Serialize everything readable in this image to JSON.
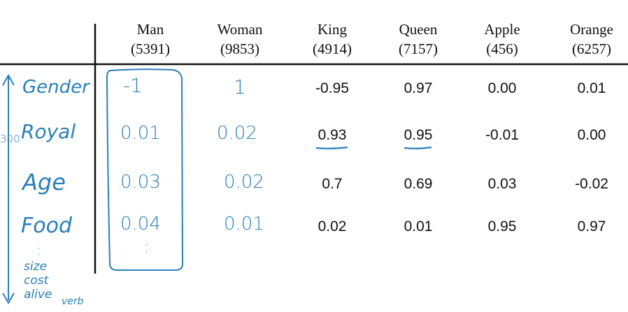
{
  "columns": [
    {
      "word": "Man",
      "index": "(5391)"
    },
    {
      "word": "Woman",
      "index": "(9853)"
    },
    {
      "word": "King",
      "index": "(4914)"
    },
    {
      "word": "Queen",
      "index": "(7157)"
    },
    {
      "word": "Apple",
      "index": "(456)"
    },
    {
      "word": "Orange",
      "index": "(6257)"
    }
  ],
  "rows": [
    {
      "feature": "Gender",
      "values": [
        "-1",
        "1",
        "-0.95",
        "0.97",
        "0.00",
        "0.01"
      ]
    },
    {
      "feature": "Royal",
      "values": [
        "0.01",
        "0.02",
        "0.93",
        "0.95",
        "-0.01",
        "0.00"
      ]
    },
    {
      "feature": "Age",
      "values": [
        "0.03",
        "0.02",
        "0.7",
        "0.69",
        "0.03",
        "-0.02"
      ]
    },
    {
      "feature": "Food",
      "values": [
        "0.04",
        "0.01",
        "0.02",
        "0.01",
        "0.95",
        "0.97"
      ]
    }
  ],
  "annotations": {
    "dimension_count": "300",
    "more_dots": ":",
    "column_dots": ":",
    "extra_features": [
      "size",
      "cost",
      "alive",
      "verb"
    ]
  },
  "colors": {
    "ink": "#2a7fb9",
    "text": "#111111",
    "rule": "#111111"
  }
}
